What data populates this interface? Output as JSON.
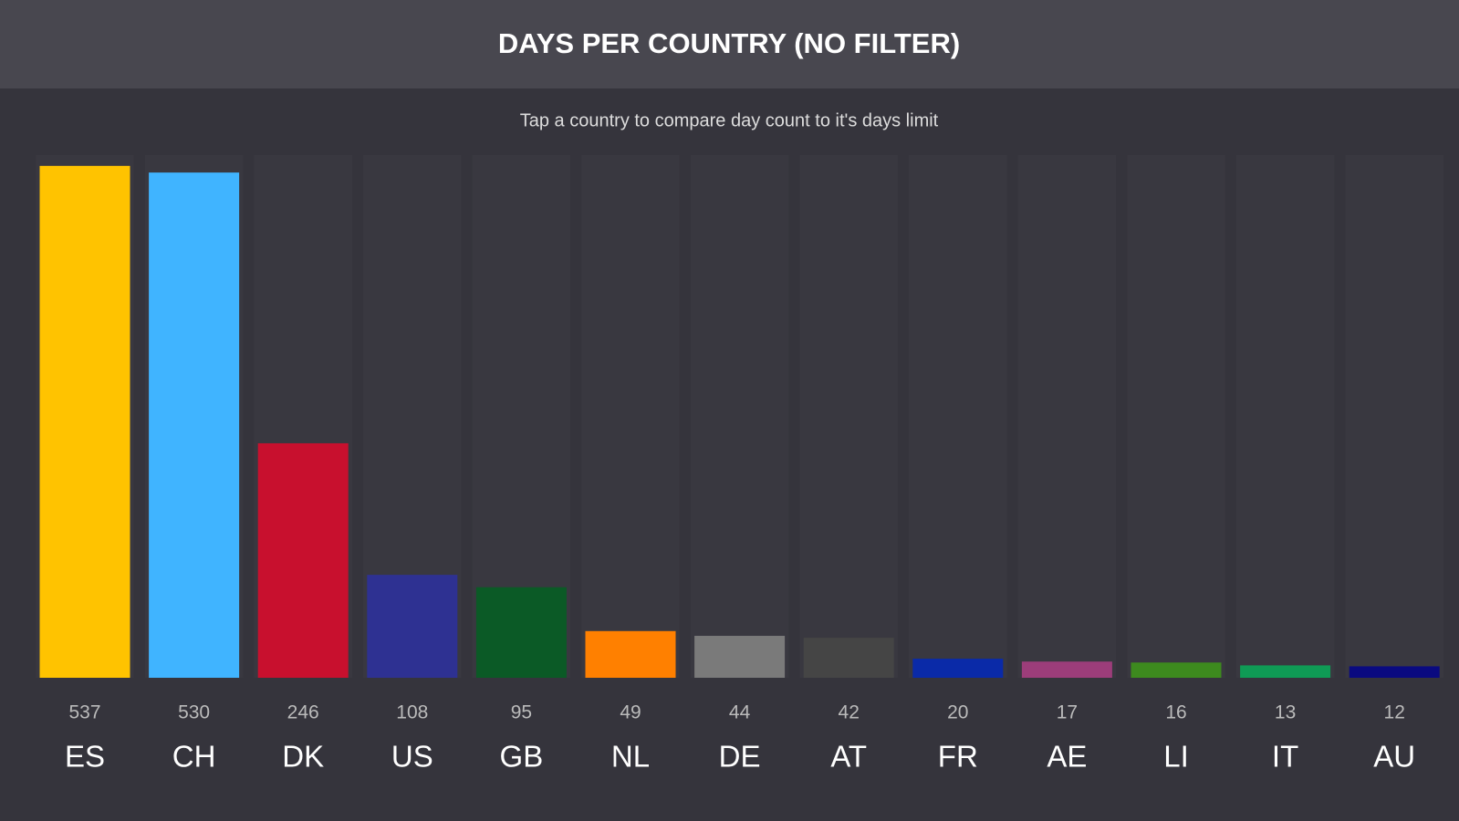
{
  "chart_data": {
    "type": "bar",
    "title": "DAYS PER COUNTRY (NO FILTER)",
    "subtitle": "Tap a country to compare day count to it's days limit",
    "categories": [
      "ES",
      "CH",
      "DK",
      "US",
      "GB",
      "NL",
      "DE",
      "AT",
      "FR",
      "AE",
      "LI",
      "IT",
      "AU"
    ],
    "values": [
      537,
      530,
      246,
      108,
      95,
      49,
      44,
      42,
      20,
      17,
      16,
      13,
      12
    ],
    "colors": [
      "#ffc300",
      "#40b4ff",
      "#c8102e",
      "#2e3192",
      "#0b5a26",
      "#ff8000",
      "#7a7a7a",
      "#454545",
      "#0a2aa8",
      "#9c3d7a",
      "#3d8a1e",
      "#0f9a55",
      "#0a0a80"
    ]
  }
}
